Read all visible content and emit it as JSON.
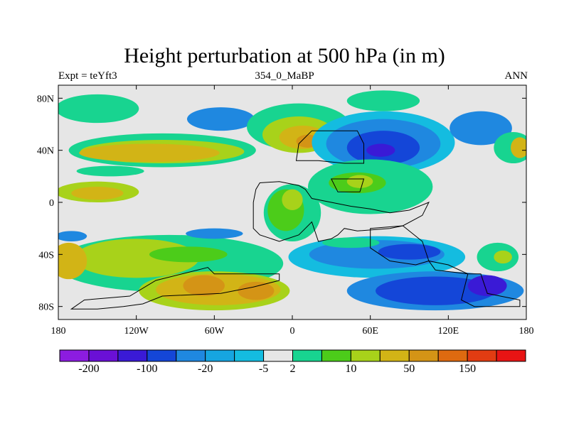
{
  "header": {
    "title": "Height perturbation at 500 hPa (in m)",
    "left_label": "Expt = teYft3",
    "center_label": "354_0_MaBP",
    "right_label": "ANN"
  },
  "chart_data": {
    "type": "heatmap",
    "title": "Height perturbation at 500 hPa (in m)",
    "xlim": [
      -180,
      180
    ],
    "ylim": [
      -90,
      90
    ],
    "x_ticks": [
      {
        "value": -180,
        "label": "180"
      },
      {
        "value": -120,
        "label": "120W"
      },
      {
        "value": -60,
        "label": "60W"
      },
      {
        "value": 0,
        "label": "0"
      },
      {
        "value": 60,
        "label": "60E"
      },
      {
        "value": 120,
        "label": "120E"
      },
      {
        "value": 180,
        "label": "180"
      }
    ],
    "y_ticks": [
      {
        "value": 80,
        "label": "80N"
      },
      {
        "value": 40,
        "label": "40N"
      },
      {
        "value": 0,
        "label": "0"
      },
      {
        "value": -40,
        "label": "40S"
      },
      {
        "value": -80,
        "label": "80S"
      }
    ],
    "colorbar": {
      "colors": [
        "#8c1ce0",
        "#6a10d6",
        "#3a1ad6",
        "#1446d8",
        "#1f88e0",
        "#16a5e0",
        "#14bce0",
        "#e6e6e6",
        "#18d490",
        "#4ccc1a",
        "#a8d21a",
        "#d2b416",
        "#d49416",
        "#de6a10",
        "#e23c12",
        "#e81414"
      ],
      "tick_labels": [
        "-200",
        "-100",
        "-20",
        "-5",
        "2",
        "10",
        "50",
        "150"
      ],
      "tick_label_boundaries": [
        1,
        3,
        5,
        7,
        8,
        10,
        12,
        14
      ]
    },
    "field": [
      {
        "lon": -100,
        "lat": 40,
        "rx": 72,
        "ry": 13,
        "color": "#18d490"
      },
      {
        "lon": -100,
        "lat": 39,
        "rx": 63,
        "ry": 9,
        "color": "#a8d21a"
      },
      {
        "lon": -110,
        "lat": 38,
        "rx": 54,
        "ry": 7,
        "color": "#d2b416"
      },
      {
        "lon": -150,
        "lat": 72,
        "rx": 32,
        "ry": 11,
        "color": "#18d490"
      },
      {
        "lon": -55,
        "lat": 64,
        "rx": 26,
        "ry": 9,
        "color": "#1f88e0"
      },
      {
        "lon": -20,
        "lat": 56,
        "rx": 14,
        "ry": 6,
        "color": "#16a5e0"
      },
      {
        "lon": -150,
        "lat": 8,
        "rx": 32,
        "ry": 8,
        "color": "#a8d21a"
      },
      {
        "lon": -150,
        "lat": 7,
        "rx": 20,
        "ry": 5,
        "color": "#d2b416"
      },
      {
        "lon": -140,
        "lat": 24,
        "rx": 26,
        "ry": 4,
        "color": "#18d490"
      },
      {
        "lon": 5,
        "lat": 58,
        "rx": 40,
        "ry": 18,
        "color": "#18d490"
      },
      {
        "lon": 5,
        "lat": 52,
        "rx": 28,
        "ry": 14,
        "color": "#a8d21a"
      },
      {
        "lon": 8,
        "lat": 50,
        "rx": 18,
        "ry": 9,
        "color": "#d2b416"
      },
      {
        "lon": 12,
        "lat": 47,
        "rx": 9,
        "ry": 5,
        "color": "#d49416"
      },
      {
        "lon": 70,
        "lat": 78,
        "rx": 28,
        "ry": 8,
        "color": "#18d490"
      },
      {
        "lon": 70,
        "lat": 46,
        "rx": 55,
        "ry": 24,
        "color": "#14bce0"
      },
      {
        "lon": 70,
        "lat": 45,
        "rx": 44,
        "ry": 19,
        "color": "#1f88e0"
      },
      {
        "lon": 70,
        "lat": 42,
        "rx": 28,
        "ry": 13,
        "color": "#1446d8"
      },
      {
        "lon": 68,
        "lat": 40,
        "rx": 11,
        "ry": 5,
        "color": "#3a1ad6"
      },
      {
        "lon": 145,
        "lat": 57,
        "rx": 24,
        "ry": 13,
        "color": "#1f88e0"
      },
      {
        "lon": 170,
        "lat": 42,
        "rx": 15,
        "ry": 12,
        "color": "#18d490"
      },
      {
        "lon": 175,
        "lat": 42,
        "rx": 7,
        "ry": 8,
        "color": "#d2b416"
      },
      {
        "lon": 60,
        "lat": 12,
        "rx": 48,
        "ry": 21,
        "color": "#18d490"
      },
      {
        "lon": 50,
        "lat": 15,
        "rx": 22,
        "ry": 8,
        "color": "#4ccc1a"
      },
      {
        "lon": 52,
        "lat": 16,
        "rx": 10,
        "ry": 5,
        "color": "#a8d21a"
      },
      {
        "lon": 0,
        "lat": -8,
        "rx": 22,
        "ry": 22,
        "color": "#18d490"
      },
      {
        "lon": -5,
        "lat": -6,
        "rx": 14,
        "ry": 16,
        "color": "#4ccc1a"
      },
      {
        "lon": 0,
        "lat": 2,
        "rx": 8,
        "ry": 8,
        "color": "#a8d21a"
      },
      {
        "lon": -95,
        "lat": -47,
        "rx": 88,
        "ry": 22,
        "color": "#18d490"
      },
      {
        "lon": -120,
        "lat": -43,
        "rx": 48,
        "ry": 15,
        "color": "#a8d21a"
      },
      {
        "lon": -80,
        "lat": -40,
        "rx": 30,
        "ry": 6,
        "color": "#4ccc1a"
      },
      {
        "lon": -172,
        "lat": -45,
        "rx": 14,
        "ry": 14,
        "color": "#d2b416"
      },
      {
        "lon": -170,
        "lat": -26,
        "rx": 12,
        "ry": 4,
        "color": "#1f88e0"
      },
      {
        "lon": -60,
        "lat": -24,
        "rx": 22,
        "ry": 4,
        "color": "#1f88e0"
      },
      {
        "lon": -60,
        "lat": -68,
        "rx": 58,
        "ry": 15,
        "color": "#a8d21a"
      },
      {
        "lon": -57,
        "lat": -67,
        "rx": 48,
        "ry": 12,
        "color": "#d2b416"
      },
      {
        "lon": -68,
        "lat": -64,
        "rx": 16,
        "ry": 8,
        "color": "#d49416"
      },
      {
        "lon": -28,
        "lat": -68,
        "rx": 14,
        "ry": 7,
        "color": "#d49416"
      },
      {
        "lon": 65,
        "lat": -42,
        "rx": 68,
        "ry": 16,
        "color": "#14bce0"
      },
      {
        "lon": 65,
        "lat": -40,
        "rx": 52,
        "ry": 11,
        "color": "#1f88e0"
      },
      {
        "lon": 90,
        "lat": -38,
        "rx": 24,
        "ry": 6,
        "color": "#1446d8"
      },
      {
        "lon": 45,
        "lat": -31,
        "rx": 22,
        "ry": 4,
        "color": "#18d490"
      },
      {
        "lon": 110,
        "lat": -68,
        "rx": 68,
        "ry": 15,
        "color": "#1f88e0"
      },
      {
        "lon": 110,
        "lat": -68,
        "rx": 46,
        "ry": 11,
        "color": "#1446d8"
      },
      {
        "lon": 150,
        "lat": -64,
        "rx": 15,
        "ry": 8,
        "color": "#3a1ad6"
      },
      {
        "lon": 158,
        "lat": -42,
        "rx": 16,
        "ry": 11,
        "color": "#18d490"
      },
      {
        "lon": 162,
        "lat": -42,
        "rx": 7,
        "ry": 5,
        "color": "#a8d21a"
      }
    ],
    "continents": [
      [
        [
          15,
          55
        ],
        [
          50,
          55
        ],
        [
          55,
          45
        ],
        [
          55,
          30
        ],
        [
          40,
          30
        ],
        [
          20,
          32
        ],
        [
          3,
          32
        ],
        [
          5,
          45
        ]
      ],
      [
        [
          30,
          18
        ],
        [
          55,
          18
        ],
        [
          52,
          8
        ],
        [
          35,
          8
        ]
      ],
      [
        [
          -25,
          15
        ],
        [
          -10,
          16
        ],
        [
          5,
          13
        ],
        [
          10,
          10
        ],
        [
          15,
          3
        ],
        [
          30,
          0
        ],
        [
          45,
          -3
        ],
        [
          60,
          -5
        ],
        [
          75,
          -8
        ],
        [
          90,
          -6
        ],
        [
          100,
          -2
        ],
        [
          105,
          0
        ],
        [
          100,
          -10
        ],
        [
          85,
          -18
        ],
        [
          75,
          -20
        ],
        [
          50,
          -22
        ],
        [
          40,
          -20
        ],
        [
          35,
          -25
        ],
        [
          30,
          -28
        ],
        [
          20,
          -30
        ],
        [
          15,
          -15
        ],
        [
          10,
          -20
        ],
        [
          5,
          -25
        ],
        [
          -10,
          -30
        ],
        [
          -25,
          -25
        ],
        [
          -30,
          -20
        ],
        [
          -30,
          0
        ],
        [
          -28,
          10
        ]
      ],
      [
        [
          60,
          -20
        ],
        [
          85,
          -18
        ],
        [
          100,
          -30
        ],
        [
          105,
          -45
        ],
        [
          95,
          -48
        ],
        [
          75,
          -45
        ],
        [
          60,
          -35
        ]
      ],
      [
        [
          105,
          -45
        ],
        [
          120,
          -48
        ],
        [
          135,
          -55
        ],
        [
          145,
          -55
        ],
        [
          150,
          -70
        ],
        [
          160,
          -72
        ],
        [
          175,
          -75
        ],
        [
          175,
          -80
        ],
        [
          140,
          -80
        ],
        [
          130,
          -75
        ],
        [
          135,
          -55
        ],
        [
          110,
          -52
        ]
      ],
      [
        [
          -160,
          -75
        ],
        [
          -125,
          -72
        ],
        [
          -105,
          -60
        ],
        [
          -65,
          -50
        ],
        [
          -60,
          -55
        ],
        [
          -10,
          -55
        ],
        [
          -10,
          -60
        ],
        [
          -30,
          -65
        ],
        [
          -55,
          -70
        ],
        [
          -100,
          -72
        ],
        [
          -115,
          -78
        ],
        [
          -130,
          -80
        ],
        [
          -150,
          -82
        ],
        [
          -170,
          -82
        ]
      ]
    ]
  }
}
